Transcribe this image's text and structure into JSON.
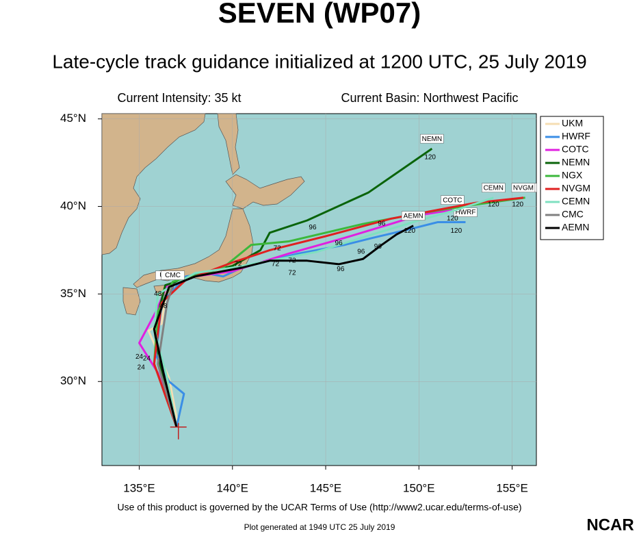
{
  "chart_data": {
    "type": "line",
    "title": "SEVEN (WP07)",
    "subtitle": "Late-cycle track guidance initialized at 1200 UTC, 25 July 2019",
    "info_left": "Current Intensity: 35 kt",
    "info_right": "Current Basin: Northwest Pacific",
    "footer": "Use of this product is governed by the UCAR Terms of Use (http://www2.ucar.edu/terms-of-use)",
    "generated": "Plot generated at 1949 UTC   25 July 2019",
    "logo": "NCAR",
    "xlim": [
      133,
      156.3
    ],
    "ylim": [
      25.2,
      45.3
    ],
    "grid": true,
    "legend": "right",
    "xticks": [
      {
        "value": 135,
        "label": "135°E"
      },
      {
        "value": 140,
        "label": "140°E"
      },
      {
        "value": 145,
        "label": "145°E"
      },
      {
        "value": 150,
        "label": "150°E"
      },
      {
        "value": 155,
        "label": "155°E"
      }
    ],
    "yticks": [
      {
        "value": 30,
        "label": "30°N"
      },
      {
        "value": 35,
        "label": "35°N"
      },
      {
        "value": 40,
        "label": "40°N"
      },
      {
        "value": 45,
        "label": "45°N"
      }
    ],
    "series": [
      {
        "name": "UKM",
        "color": "#f5deb3",
        "x": [
          137.1,
          136.6,
          135.5,
          136.2,
          136.5
        ],
        "values": [
          27.4,
          30.2,
          32.9,
          33.3,
          35.5
        ]
      },
      {
        "name": "HWRF",
        "color": "#3a8ee6",
        "x": [
          137.0,
          137.4,
          136.6,
          135.9,
          136.2,
          137.5,
          138.5,
          139.5,
          140.5,
          143.5,
          146.0,
          147.5,
          149.5,
          151.0,
          152.5
        ],
        "values": [
          27.4,
          29.3,
          30.0,
          31.5,
          34.5,
          36.0,
          36.2,
          36.0,
          36.5,
          37.3,
          37.8,
          38.2,
          38.7,
          39.1,
          39.1
        ]
      },
      {
        "name": "COTC",
        "color": "#e020e0",
        "x": [
          137.0,
          136.0,
          135.0,
          135.9,
          136.5,
          138.0,
          140.0,
          141.5,
          143.0,
          146.0,
          148.5,
          150.0,
          151.8
        ],
        "values": [
          27.4,
          30.5,
          32.2,
          34.0,
          35.5,
          36.0,
          36.3,
          36.8,
          37.3,
          38.2,
          39.0,
          39.5,
          39.8
        ]
      },
      {
        "name": "NEMN",
        "color": "#0a640a",
        "x": [
          137.0,
          136.2,
          135.8,
          136.4,
          138.5,
          140.0,
          141.5,
          142.0,
          144.0,
          147.3,
          150.7
        ],
        "values": [
          27.4,
          30.5,
          33.0,
          35.5,
          36.2,
          36.6,
          37.5,
          38.5,
          39.2,
          40.8,
          43.3
        ]
      },
      {
        "name": "NGX",
        "color": "#3cb83c",
        "x": [
          137.0,
          135.8,
          136.0,
          136.8,
          139.5,
          141.0,
          143.0,
          147.0,
          150.0,
          153.0,
          155.7
        ],
        "values": [
          27.4,
          31.0,
          34.0,
          35.7,
          36.5,
          37.8,
          38.0,
          39.0,
          39.6,
          40.1,
          40.5
        ]
      },
      {
        "name": "NVGM",
        "color": "#e02020",
        "x": [
          137.0,
          135.8,
          136.2,
          137.5,
          140.0,
          142.0,
          145.0,
          148.5,
          151.0,
          153.0,
          155.6
        ],
        "values": [
          27.4,
          31.0,
          34.5,
          35.8,
          36.8,
          37.5,
          38.3,
          39.3,
          39.8,
          40.2,
          40.5
        ]
      },
      {
        "name": "CEMN",
        "color": "#7fe0c0",
        "x": [
          137.0,
          136.5,
          135.8,
          136.0,
          138.0,
          140.0,
          142.0,
          144.5,
          147.5,
          150.0,
          152.0,
          154.0
        ],
        "values": [
          27.4,
          30.2,
          33.0,
          35.0,
          36.2,
          36.5,
          36.9,
          37.4,
          38.4,
          39.2,
          39.8,
          40.5
        ]
      },
      {
        "name": "CMC",
        "color": "#808080",
        "x": [
          137.0,
          136.0,
          136.5,
          136.8
        ],
        "values": [
          27.4,
          31.0,
          34.5,
          35.5
        ]
      },
      {
        "name": "AEMN",
        "color": "#000000",
        "x": [
          137.0,
          136.3,
          135.8,
          136.6,
          138.0,
          140.5,
          142.0,
          144.0,
          145.7,
          147.0,
          148.0,
          148.8,
          149.7
        ],
        "values": [
          27.4,
          30.5,
          33.0,
          35.4,
          36.0,
          36.5,
          36.9,
          36.9,
          36.7,
          37.0,
          37.8,
          38.4,
          38.9
        ]
      }
    ],
    "hour_labels": [
      {
        "text": "120",
        "x": 150.6,
        "y": 42.8
      },
      {
        "text": "96",
        "x": 144.3,
        "y": 38.8
      },
      {
        "text": "120",
        "x": 154.0,
        "y": 40.1
      },
      {
        "text": "120",
        "x": 155.3,
        "y": 40.1
      },
      {
        "text": "120",
        "x": 151.8,
        "y": 39.3
      },
      {
        "text": "120",
        "x": 149.5,
        "y": 38.6
      },
      {
        "text": "120",
        "x": 152.0,
        "y": 38.6
      },
      {
        "text": "96",
        "x": 148.0,
        "y": 39.0
      },
      {
        "text": "96",
        "x": 145.7,
        "y": 37.9
      },
      {
        "text": "96",
        "x": 146.9,
        "y": 37.4
      },
      {
        "text": "96",
        "x": 147.8,
        "y": 37.7
      },
      {
        "text": "96",
        "x": 145.8,
        "y": 36.4
      },
      {
        "text": "72",
        "x": 142.4,
        "y": 37.6
      },
      {
        "text": "72",
        "x": 142.3,
        "y": 36.7
      },
      {
        "text": "72",
        "x": 143.2,
        "y": 36.9
      },
      {
        "text": "72",
        "x": 143.2,
        "y": 36.2
      },
      {
        "text": "72",
        "x": 140.3,
        "y": 36.7
      },
      {
        "text": "48",
        "x": 136.3,
        "y": 34.3
      },
      {
        "text": "48",
        "x": 136.0,
        "y": 35.0
      },
      {
        "text": "24",
        "x": 135.0,
        "y": 31.4
      },
      {
        "text": "24",
        "x": 135.4,
        "y": 31.3
      },
      {
        "text": "24",
        "x": 135.1,
        "y": 30.8
      }
    ]
  }
}
